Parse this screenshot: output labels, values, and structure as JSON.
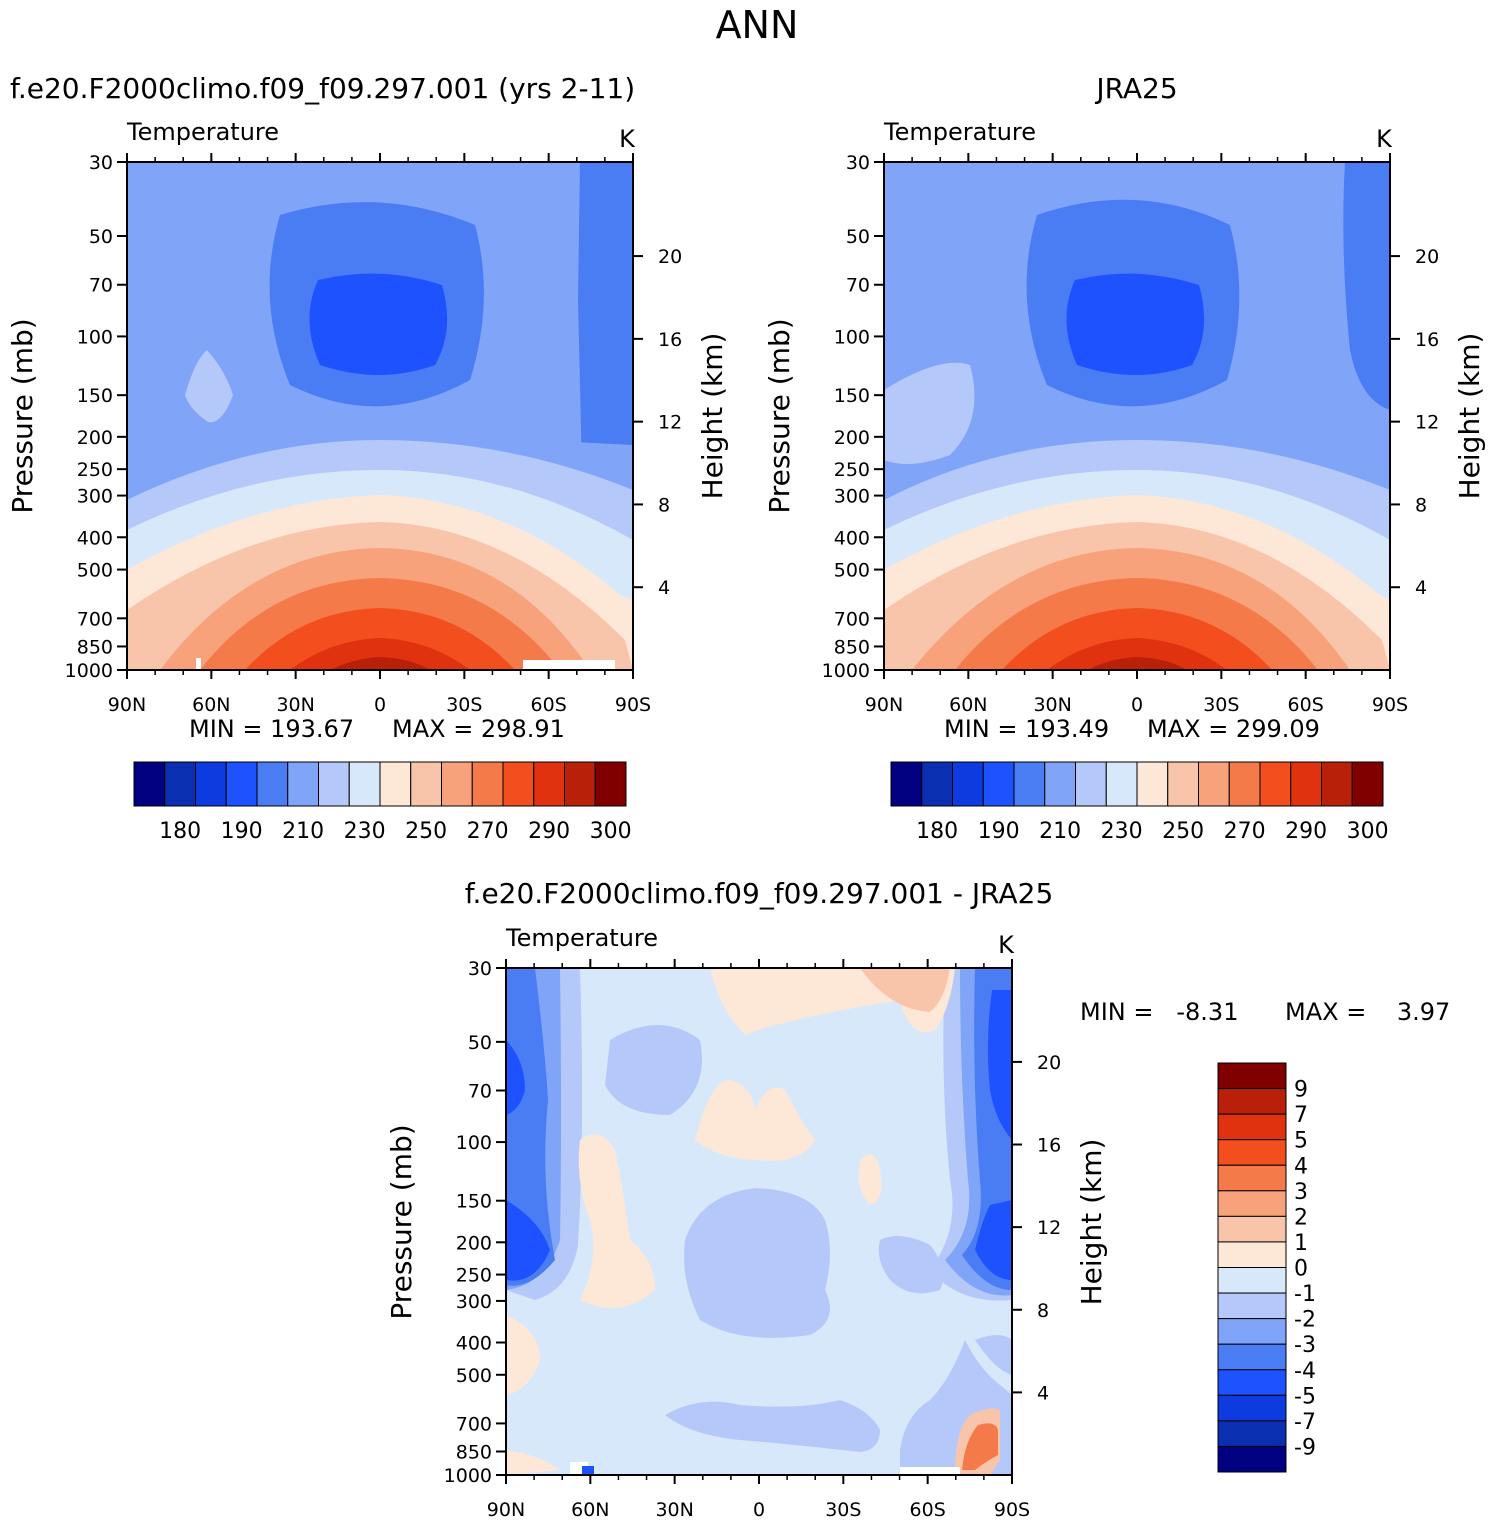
{
  "figure_title": "ANN",
  "chart_data": [
    {
      "type": "heatmap",
      "panel": "model",
      "title": "f.e20.F2000climo.f09_f09.297.001 (yrs 2-11)",
      "variable": "Temperature",
      "units": "K",
      "xlabel": "",
      "ylabel": "Pressure (mb)",
      "y2label": "Height (km)",
      "x_ticks": [
        "90N",
        "60N",
        "30N",
        "0",
        "30S",
        "60S",
        "90S"
      ],
      "y_ticks": [
        "30",
        "50",
        "70",
        "100",
        "150",
        "200",
        "250",
        "300",
        "400",
        "500",
        "700",
        "850",
        "1000"
      ],
      "y2_ticks": [
        "20",
        "16",
        "12",
        "8",
        "4"
      ],
      "ylim_mb": [
        30,
        1000
      ],
      "min_label": "MIN = 193.67",
      "max_label": "MAX = 298.91",
      "min": 193.67,
      "max": 298.91
    },
    {
      "type": "heatmap",
      "panel": "obs",
      "title": "JRA25",
      "variable": "Temperature",
      "units": "K",
      "xlabel": "",
      "ylabel": "Pressure (mb)",
      "y2label": "Height (km)",
      "x_ticks": [
        "90N",
        "60N",
        "30N",
        "0",
        "30S",
        "60S",
        "90S"
      ],
      "y_ticks": [
        "30",
        "50",
        "70",
        "100",
        "150",
        "200",
        "250",
        "300",
        "400",
        "500",
        "700",
        "850",
        "1000"
      ],
      "y2_ticks": [
        "20",
        "16",
        "12",
        "8",
        "4"
      ],
      "ylim_mb": [
        30,
        1000
      ],
      "min_label": "MIN = 193.49",
      "max_label": "MAX = 299.09",
      "min": 193.49,
      "max": 299.09
    },
    {
      "type": "heatmap",
      "panel": "difference",
      "title": "f.e20.F2000climo.f09_f09.297.001 - JRA25",
      "variable": "Temperature",
      "units": "K",
      "xlabel": "",
      "ylabel": "Pressure (mb)",
      "y2label": "Height (km)",
      "x_ticks": [
        "90N",
        "60N",
        "30N",
        "0",
        "30S",
        "60S",
        "90S"
      ],
      "y_ticks": [
        "30",
        "50",
        "70",
        "100",
        "150",
        "200",
        "250",
        "300",
        "400",
        "500",
        "700",
        "850",
        "1000"
      ],
      "y2_ticks": [
        "20",
        "16",
        "12",
        "8",
        "4"
      ],
      "ylim_mb": [
        30,
        1000
      ],
      "min_label": "MIN =   -8.31",
      "max_label": "MAX =    3.97",
      "min": -8.31,
      "max": 3.97
    }
  ],
  "colorbar_temperature": {
    "labels": [
      "180",
      "190",
      "210",
      "230",
      "250",
      "270",
      "290",
      "300"
    ],
    "colors": [
      "#000080",
      "#0a2fb0",
      "#0d3be0",
      "#1f52ff",
      "#4a7cf4",
      "#7fa4f8",
      "#b4c9f9",
      "#d8e8fb",
      "#fde8d8",
      "#f9c5aa",
      "#f7a27a",
      "#f47a4a",
      "#f24e1e",
      "#e0320e",
      "#b8200a",
      "#800000"
    ]
  },
  "colorbar_difference": {
    "labels": [
      "9",
      "7",
      "5",
      "4",
      "3",
      "2",
      "1",
      "0",
      "-1",
      "-2",
      "-3",
      "-4",
      "-5",
      "-7",
      "-9"
    ],
    "colors": [
      "#800000",
      "#b8200a",
      "#e0320e",
      "#f24e1e",
      "#f47a4a",
      "#f7a27a",
      "#f9c5aa",
      "#fde8d8",
      "#d8e8fb",
      "#b4c9f9",
      "#7fa4f8",
      "#4a7cf4",
      "#1f52ff",
      "#0d3be0",
      "#0a2fb0",
      "#000080"
    ]
  }
}
